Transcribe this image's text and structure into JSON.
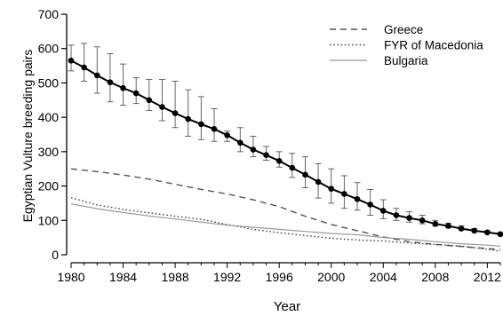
{
  "chart_data": {
    "type": "line",
    "title": "",
    "xlabel": "Year",
    "ylabel": "Egyptian Vulture breeding pairs",
    "xlim": [
      1980,
      2013
    ],
    "ylim": [
      0,
      700
    ],
    "x_ticks": [
      1980,
      1984,
      1988,
      1992,
      1996,
      2000,
      2004,
      2008,
      2012
    ],
    "y_ticks": [
      0,
      100,
      200,
      300,
      400,
      500,
      600,
      700
    ],
    "grid": false,
    "legend_position": "top-right",
    "main_series": {
      "style": "solid-points-with-error-bars",
      "color": "#000000",
      "x": [
        1980,
        1981,
        1982,
        1983,
        1984,
        1985,
        1986,
        1987,
        1988,
        1989,
        1990,
        1991,
        1992,
        1993,
        1994,
        1995,
        1996,
        1997,
        1998,
        1999,
        2000,
        2001,
        2002,
        2003,
        2004,
        2005,
        2006,
        2007,
        2008,
        2009,
        2010,
        2011,
        2012,
        2013
      ],
      "y": [
        565,
        545,
        522,
        502,
        485,
        470,
        450,
        430,
        412,
        395,
        380,
        366,
        348,
        326,
        306,
        290,
        273,
        253,
        233,
        212,
        192,
        177,
        162,
        146,
        128,
        115,
        107,
        100,
        90,
        84,
        76,
        70,
        65,
        60
      ],
      "err_low": [
        535,
        505,
        470,
        445,
        435,
        440,
        420,
        390,
        370,
        345,
        335,
        330,
        330,
        300,
        285,
        275,
        255,
        225,
        195,
        165,
        150,
        135,
        130,
        115,
        105,
        100,
        95,
        90,
        83,
        78,
        72,
        68,
        63,
        58
      ],
      "err_high": [
        610,
        615,
        605,
        585,
        555,
        515,
        510,
        510,
        505,
        480,
        460,
        425,
        360,
        370,
        345,
        315,
        300,
        295,
        285,
        265,
        250,
        230,
        210,
        190,
        160,
        135,
        125,
        115,
        100,
        92,
        84,
        76,
        70,
        64
      ]
    },
    "series": [
      {
        "name": "Greece",
        "dash": "dashed",
        "color": "#555555",
        "x": [
          1980,
          1982,
          1984,
          1986,
          1988,
          1990,
          1992,
          1994,
          1996,
          1998,
          2000,
          2002,
          2004,
          2006,
          2008,
          2010,
          2012,
          2013
        ],
        "y": [
          250,
          242,
          232,
          220,
          205,
          190,
          177,
          160,
          140,
          112,
          88,
          70,
          52,
          38,
          30,
          24,
          18,
          15
        ]
      },
      {
        "name": "FYR of Macedonia",
        "dash": "dotted",
        "color": "#444444",
        "x": [
          1980,
          1982,
          1984,
          1986,
          1988,
          1990,
          1992,
          1994,
          1996,
          1998,
          2000,
          2002,
          2004,
          2006,
          2008,
          2010,
          2012,
          2013
        ],
        "y": [
          166,
          145,
          132,
          122,
          112,
          103,
          88,
          74,
          64,
          56,
          48,
          43,
          40,
          34,
          30,
          25,
          16,
          10
        ]
      },
      {
        "name": "Bulgaria",
        "dash": "solid",
        "color": "#999999",
        "x": [
          1980,
          1982,
          1984,
          1986,
          1988,
          1990,
          1992,
          1994,
          1996,
          1998,
          2000,
          2002,
          2004,
          2006,
          2008,
          2010,
          2012,
          2013
        ],
        "y": [
          148,
          134,
          123,
          113,
          104,
          95,
          86,
          80,
          74,
          68,
          62,
          58,
          50,
          45,
          38,
          32,
          28,
          25
        ]
      }
    ]
  }
}
